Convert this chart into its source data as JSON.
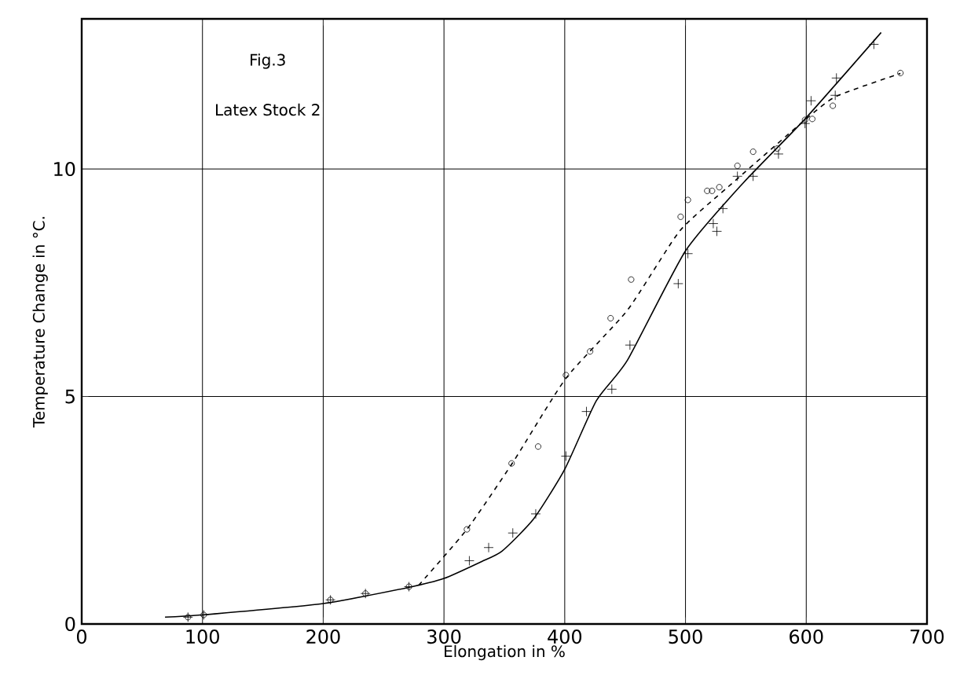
{
  "chart_data": {
    "type": "line",
    "title": "Fig.3",
    "subtitle": "Latex Stock 2",
    "xlabel": "Elongation in %",
    "ylabel": "Temperature Change in °C.",
    "xlim": [
      0,
      700
    ],
    "ylim": [
      0,
      13.3
    ],
    "xticks": [
      0,
      100,
      200,
      300,
      400,
      500,
      600,
      700
    ],
    "yticks": [
      0,
      5,
      10
    ],
    "grid": true,
    "series": [
      {
        "type": "scatter",
        "marker": "circle",
        "color": "#000000",
        "x": [
          88,
          101,
          206,
          235,
          271,
          319,
          356,
          378,
          401,
          421,
          438,
          455,
          496,
          502,
          518,
          522,
          528,
          543,
          556,
          576,
          599,
          605,
          622,
          678
        ],
        "values": [
          0.15,
          0.2,
          0.53,
          0.67,
          0.82,
          2.08,
          3.53,
          3.9,
          5.47,
          5.99,
          6.72,
          7.57,
          8.95,
          9.32,
          9.52,
          9.52,
          9.6,
          10.07,
          10.38,
          10.45,
          11.08,
          11.1,
          11.39,
          12.11
        ]
      },
      {
        "type": "scatter",
        "marker": "cross",
        "color": "#000000",
        "x": [
          88,
          101,
          206,
          235,
          271,
          321,
          337,
          357,
          376,
          401,
          418,
          439,
          454,
          494,
          502,
          523,
          526,
          531,
          543,
          556,
          577,
          599,
          604,
          624,
          625,
          656
        ],
        "values": [
          0.15,
          0.2,
          0.53,
          0.67,
          0.82,
          1.39,
          1.68,
          2.0,
          2.42,
          3.69,
          4.67,
          5.16,
          6.13,
          7.48,
          8.14,
          8.8,
          8.63,
          9.13,
          9.84,
          9.84,
          10.33,
          11.0,
          11.5,
          11.62,
          12.0,
          12.74
        ]
      },
      {
        "line_style": "solid",
        "color": "#000000",
        "x": [
          69,
          100,
          200,
          270,
          300,
          331,
          348,
          374,
          400,
          426,
          452,
          500,
          548,
          599,
          662
        ],
        "values": [
          0.15,
          0.2,
          0.45,
          0.8,
          1.0,
          1.37,
          1.6,
          2.3,
          3.4,
          4.9,
          5.8,
          8.2,
          9.7,
          11.1,
          13.0
        ]
      },
      {
        "line_style": "dashed",
        "color": "#000000",
        "x": [
          279,
          319,
          357,
          401,
          452,
          495,
          535,
          599,
          625,
          678
        ],
        "values": [
          0.85,
          2.08,
          3.55,
          5.4,
          6.9,
          8.63,
          9.6,
          11.08,
          11.6,
          12.1
        ]
      }
    ]
  }
}
